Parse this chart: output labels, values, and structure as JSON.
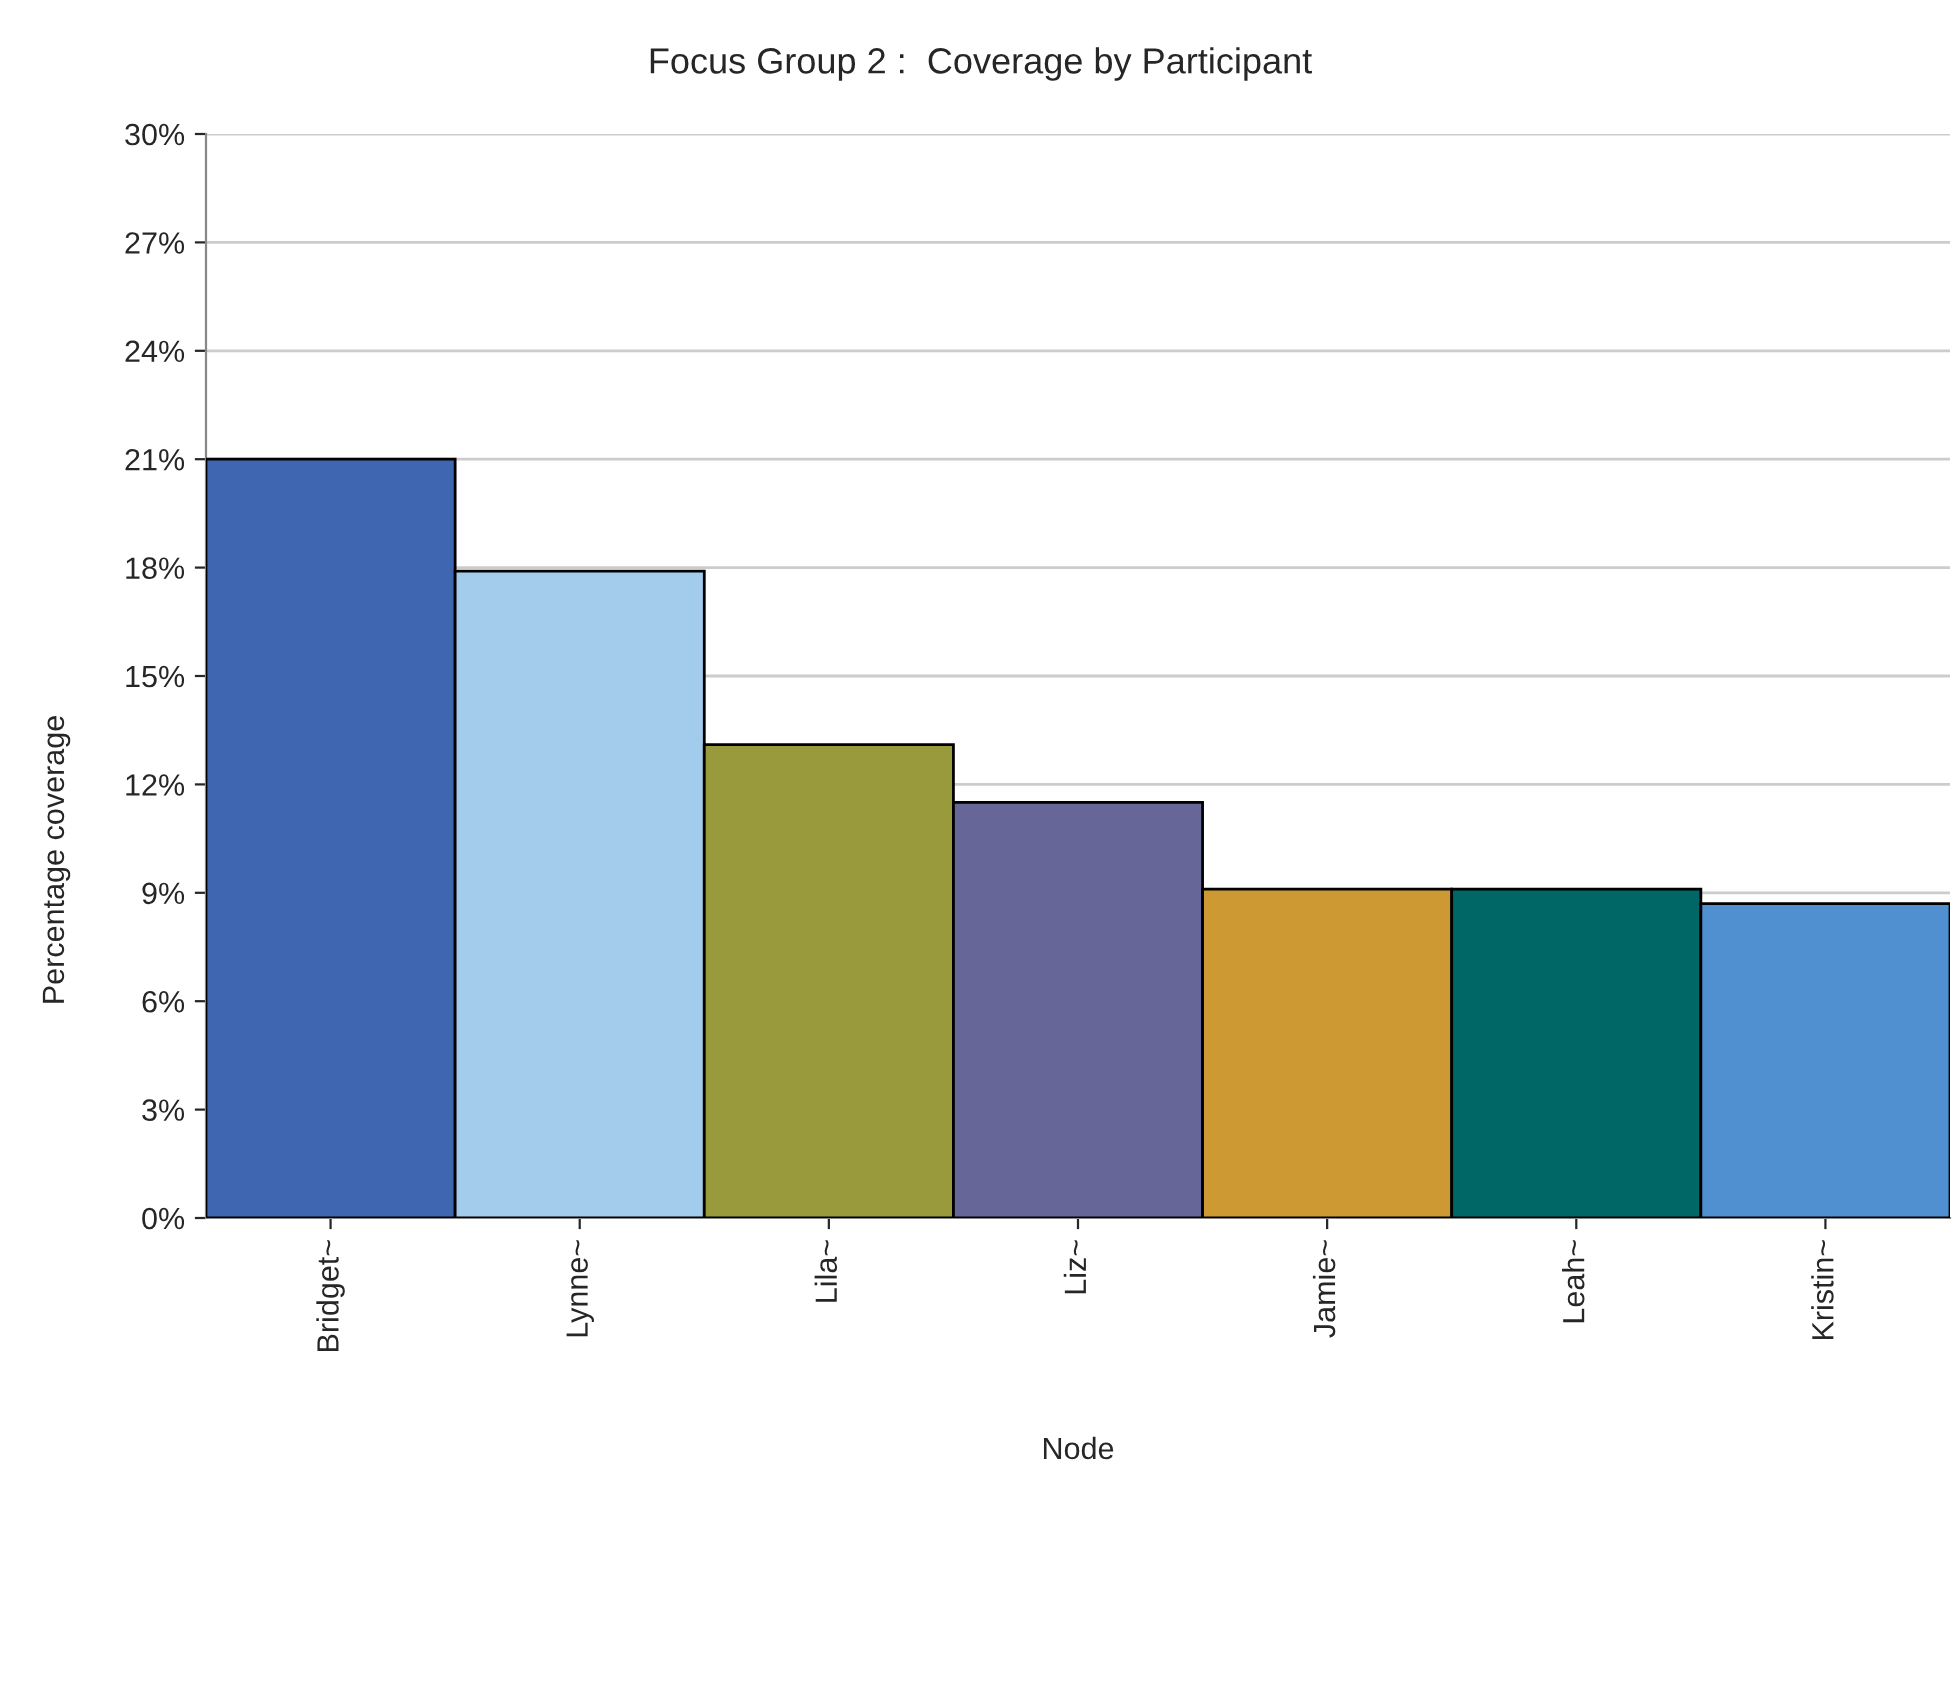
{
  "chart_data": {
    "type": "bar",
    "title": "Focus Group 2 :  Coverage by Participant",
    "xlabel": "Node",
    "ylabel": "Percentage coverage",
    "categories": [
      "Bridget~",
      "Lynne~",
      "Lila~",
      "Liz~",
      "Jamie~",
      "Leah~",
      "Kristin~"
    ],
    "values": [
      21,
      17.9,
      13.1,
      11.5,
      9.1,
      9.1,
      8.7
    ],
    "colors": [
      "#3f67b1",
      "#a3cbeb",
      "#999a3b",
      "#666699",
      "#cc9933",
      "#006666",
      "#5090d0"
    ],
    "ylim": [
      0,
      30
    ],
    "yticks": [
      {
        "value": 0,
        "label": "0%"
      },
      {
        "value": 3,
        "label": "3%"
      },
      {
        "value": 6,
        "label": "6%"
      },
      {
        "value": 9,
        "label": "9%"
      },
      {
        "value": 12,
        "label": "12%"
      },
      {
        "value": 15,
        "label": "15%"
      },
      {
        "value": 18,
        "label": "18%"
      },
      {
        "value": 21,
        "label": "21%"
      },
      {
        "value": 24,
        "label": "24%"
      },
      {
        "value": 27,
        "label": "27%"
      },
      {
        "value": 30,
        "label": "30%"
      }
    ],
    "grid": "y",
    "legend": false
  }
}
